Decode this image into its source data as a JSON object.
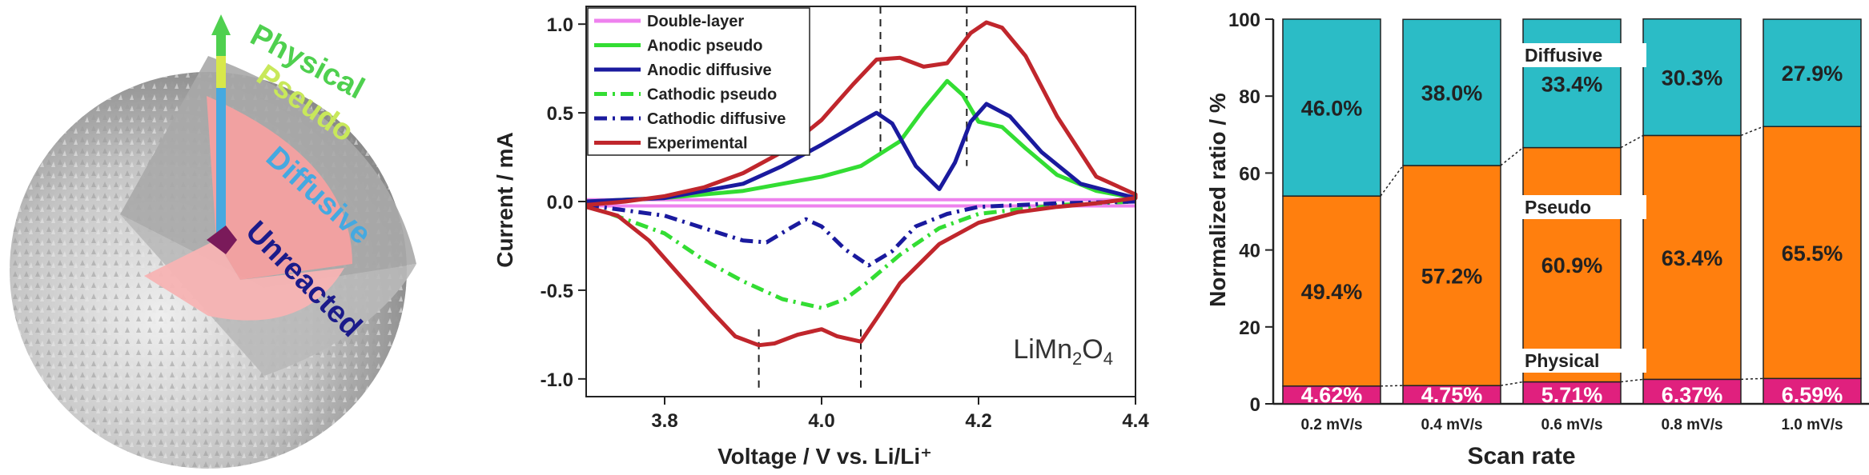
{
  "particle": {
    "labels": [
      "Physical",
      "Pseudo",
      "Diffusive",
      "Unreacted"
    ],
    "label_colors": [
      "#4fd04f",
      "#c8e85a",
      "#45a9e0",
      "#1b1b8a"
    ],
    "sphere_color": "#c8c8c8",
    "core_color": "#f4a6a6"
  },
  "cv": {
    "ylabel": "Current / mA",
    "xlabel": "Voltage / V vs. Li/Li⁺",
    "material": "LiMn₂O₄",
    "xticks": [
      "3.8",
      "4.0",
      "4.2",
      "4.4"
    ],
    "yticks": [
      "1.0",
      "0.5",
      "0.0",
      "-0.5",
      "-1.0"
    ],
    "legend": [
      "Double-layer",
      "Anodic pseudo",
      "Anodic diffusive",
      "Cathodic pseudo",
      "Cathodic diffusive",
      "Experimental"
    ]
  },
  "bars": {
    "ylabel": "Normalized ratio / %",
    "xlabel": "Scan rate",
    "yticks": [
      "0",
      "20",
      "40",
      "60",
      "80",
      "100"
    ],
    "annotations": [
      "Diffusive",
      "Pseudo",
      "Physical"
    ]
  },
  "chart_data": [
    {
      "type": "line",
      "title": "",
      "xlabel": "Voltage / V vs. Li/Li⁺",
      "ylabel": "Current / mA",
      "xlim": [
        3.7,
        4.4
      ],
      "ylim": [
        -1.1,
        1.1
      ],
      "grid": false,
      "legend_position": "top-left",
      "vertical_lines": [
        3.92,
        4.05,
        4.075,
        4.185
      ],
      "series": [
        {
          "name": "Double-layer",
          "color": "#ee82ee",
          "style": "solid",
          "x": [
            3.7,
            4.4
          ],
          "y": [
            0.01,
            0.01
          ]
        },
        {
          "name": "Double-layer",
          "color": "#ee82ee",
          "style": "solid",
          "x": [
            3.7,
            4.4
          ],
          "y": [
            -0.025,
            -0.025
          ]
        },
        {
          "name": "Anodic pseudo",
          "color": "#33dd33",
          "style": "solid",
          "x": [
            3.7,
            3.8,
            3.9,
            4.0,
            4.05,
            4.1,
            4.13,
            4.16,
            4.18,
            4.2,
            4.23,
            4.26,
            4.3,
            4.35,
            4.4
          ],
          "y": [
            0.0,
            0.02,
            0.06,
            0.14,
            0.2,
            0.34,
            0.52,
            0.68,
            0.6,
            0.45,
            0.42,
            0.3,
            0.15,
            0.06,
            0.02
          ]
        },
        {
          "name": "Anodic diffusive",
          "color": "#1a1a9e",
          "style": "solid",
          "x": [
            3.7,
            3.8,
            3.9,
            3.95,
            4.0,
            4.05,
            4.07,
            4.09,
            4.12,
            4.15,
            4.17,
            4.19,
            4.21,
            4.24,
            4.28,
            4.33,
            4.4
          ],
          "y": [
            0.0,
            0.02,
            0.1,
            0.2,
            0.32,
            0.45,
            0.5,
            0.44,
            0.2,
            0.07,
            0.22,
            0.45,
            0.55,
            0.48,
            0.28,
            0.1,
            0.02
          ]
        },
        {
          "name": "Cathodic pseudo",
          "color": "#33dd33",
          "style": "dashdot",
          "x": [
            3.7,
            3.8,
            3.85,
            3.9,
            3.95,
            4.0,
            4.03,
            4.06,
            4.1,
            4.15,
            4.2,
            4.3,
            4.4
          ],
          "y": [
            -0.02,
            -0.18,
            -0.33,
            -0.45,
            -0.55,
            -0.6,
            -0.55,
            -0.45,
            -0.3,
            -0.15,
            -0.07,
            -0.02,
            0.0
          ]
        },
        {
          "name": "Cathodic diffusive",
          "color": "#1a1a9e",
          "style": "dashdot",
          "x": [
            3.7,
            3.8,
            3.85,
            3.9,
            3.93,
            3.96,
            3.98,
            4.0,
            4.03,
            4.06,
            4.09,
            4.12,
            4.16,
            4.2,
            4.3,
            4.4
          ],
          "y": [
            -0.02,
            -0.08,
            -0.15,
            -0.22,
            -0.23,
            -0.15,
            -0.1,
            -0.14,
            -0.27,
            -0.36,
            -0.28,
            -0.14,
            -0.07,
            -0.03,
            -0.01,
            0.0
          ]
        },
        {
          "name": "Experimental",
          "color": "#c0262c",
          "style": "solid",
          "x": [
            3.7,
            3.75,
            3.8,
            3.85,
            3.9,
            3.95,
            4.0,
            4.04,
            4.07,
            4.1,
            4.13,
            4.16,
            4.19,
            4.21,
            4.23,
            4.26,
            4.3,
            4.35,
            4.4,
            4.4,
            4.35,
            4.3,
            4.25,
            4.2,
            4.15,
            4.1,
            4.07,
            4.05,
            4.02,
            4.0,
            3.97,
            3.94,
            3.92,
            3.89,
            3.86,
            3.82,
            3.78,
            3.74,
            3.7
          ],
          "y": [
            -0.02,
            0.0,
            0.03,
            0.08,
            0.16,
            0.28,
            0.46,
            0.66,
            0.8,
            0.81,
            0.76,
            0.78,
            0.95,
            1.01,
            0.98,
            0.82,
            0.48,
            0.14,
            0.04,
            0.02,
            -0.01,
            -0.03,
            -0.06,
            -0.12,
            -0.24,
            -0.46,
            -0.66,
            -0.79,
            -0.76,
            -0.72,
            -0.75,
            -0.8,
            -0.81,
            -0.76,
            -0.62,
            -0.42,
            -0.22,
            -0.08,
            -0.03
          ]
        }
      ]
    },
    {
      "type": "bar",
      "stacked": true,
      "title": "",
      "xlabel": "Scan rate",
      "ylabel": "Normalized ratio / %",
      "ylim": [
        0,
        100
      ],
      "categories": [
        "0.2 mV/s",
        "0.4 mV/s",
        "0.6 mV/s",
        "0.8 mV/s",
        "1.0 mV/s"
      ],
      "series": [
        {
          "name": "Physical",
          "color": "#e0207e",
          "values": [
            4.62,
            4.75,
            5.71,
            6.37,
            6.59
          ],
          "labels": [
            "4.62%",
            "4.75%",
            "5.71%",
            "6.37%",
            "6.59%"
          ]
        },
        {
          "name": "Pseudo",
          "color": "#ff7f0e",
          "values": [
            49.4,
            57.2,
            60.9,
            63.4,
            65.5
          ],
          "labels": [
            "49.4%",
            "57.2%",
            "60.9%",
            "63.4%",
            "65.5%"
          ]
        },
        {
          "name": "Diffusive",
          "color": "#2bbcc6",
          "values": [
            46.0,
            38.0,
            33.4,
            30.3,
            27.9
          ],
          "labels": [
            "46.0%",
            "38.0%",
            "33.4%",
            "30.3%",
            "27.9%"
          ]
        }
      ]
    }
  ]
}
